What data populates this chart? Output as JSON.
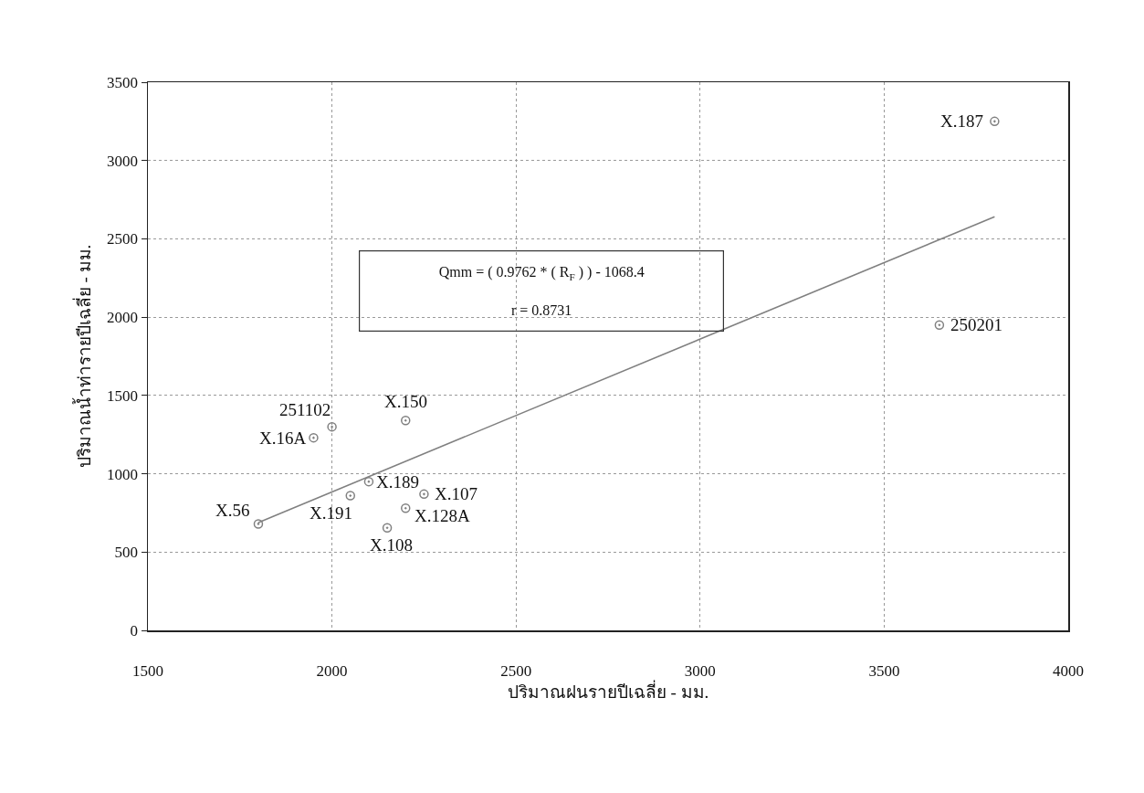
{
  "chart_data": {
    "type": "scatter",
    "xlabel": "ปริมาณฝนรายปีเฉลี่ย - มม.",
    "ylabel": "ปริมาณน้ำท่ารายปีเฉลี่ย - มม.",
    "xlim": [
      1500,
      4000
    ],
    "xticks": [
      1500,
      2000,
      2500,
      3000,
      3500,
      4000
    ],
    "ylim": [
      0,
      3500
    ],
    "yticks": [
      0,
      500,
      1000,
      1500,
      2000,
      2500,
      3000,
      3500
    ],
    "grid": true,
    "marker": "circle",
    "series": [
      {
        "type": "scatter",
        "color": "#808080",
        "x": [
          3800,
          3650,
          2200,
          2000,
          1950,
          1800,
          2100,
          2050,
          2250,
          2200,
          2150
        ],
        "values": [
          3250,
          1950,
          1340,
          1300,
          1230,
          680,
          950,
          860,
          870,
          780,
          655
        ]
      },
      {
        "type": "line",
        "color": "#808080",
        "marker": "none",
        "x": [
          1800,
          3800
        ],
        "values": [
          689,
          2641
        ]
      }
    ],
    "annotations": [
      "Qmm = ( 0.9762 * ( R$_{F}$ ) ) - 1068.4",
      "r = 0.8731",
      {
        "text": "X.187",
        "x": 3800,
        "y": 3250
      },
      {
        "text": "250201",
        "x": 3650,
        "y": 1950
      },
      {
        "text": "X.150",
        "x": 2200,
        "y": 1340
      },
      {
        "text": "251102",
        "x": 2000,
        "y": 1300
      },
      {
        "text": "X.16A",
        "x": 1950,
        "y": 1230
      },
      {
        "text": "X.56",
        "x": 1800,
        "y": 680
      },
      {
        "text": "X.189",
        "x": 2100,
        "y": 950
      },
      {
        "text": "X.191",
        "x": 2050,
        "y": 860
      },
      {
        "text": "X.107",
        "x": 2250,
        "y": 870
      },
      {
        "text": "X.128A",
        "x": 2200,
        "y": 780
      },
      {
        "text": "X.108",
        "x": 2150,
        "y": 655
      }
    ]
  }
}
